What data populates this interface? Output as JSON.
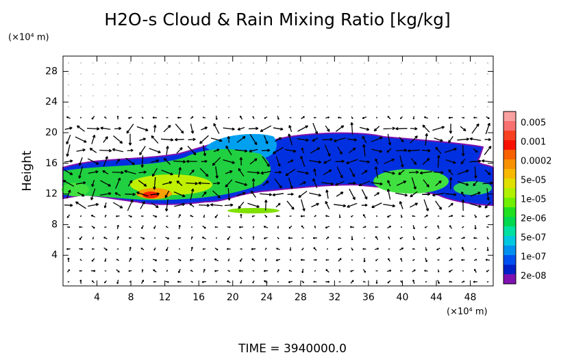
{
  "chart_data": {
    "type": "contour",
    "title": "H2O-s Cloud & Rain Mixing Ratio [kg/kg]",
    "y_unit": "(×10⁴ m)",
    "x_unit": "(×10⁴ m)",
    "y_label": "Height",
    "footer": "TIME = 3940000.0",
    "xlim": [
      0,
      50.7
    ],
    "xticks": [
      4,
      8,
      12,
      16,
      20,
      24,
      28,
      32,
      36,
      40,
      44,
      48
    ],
    "ylim": [
      0,
      30
    ],
    "yticks": [
      4,
      8,
      12,
      16,
      20,
      24,
      28
    ],
    "colorbar": {
      "labels": [
        "0.005",
        "0.001",
        "0.0002",
        "5e-05",
        "1e-05",
        "2e-06",
        "5e-07",
        "1e-07",
        "2e-08"
      ],
      "colors": [
        "#f9a0a0",
        "#f87070",
        "#f84020",
        "#f81000",
        "#f86000",
        "#f89000",
        "#f8b800",
        "#e0e000",
        "#b0f000",
        "#70f000",
        "#20e020",
        "#00d850",
        "#00e0a0",
        "#00c8e0",
        "#0090f0",
        "#0050f0",
        "#0020c8",
        "#8010b0"
      ]
    }
  }
}
